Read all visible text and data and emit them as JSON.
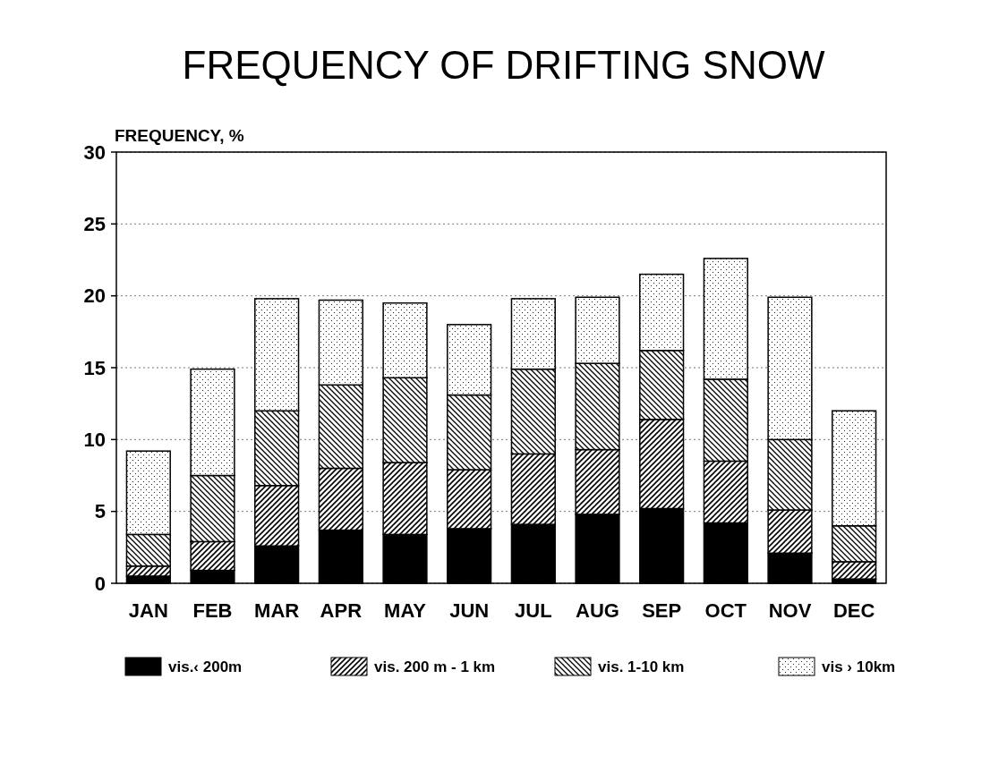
{
  "chart_data": {
    "type": "bar",
    "stacked": true,
    "title": "FREQUENCY OF DRIFTING SNOW",
    "ylabel": "FREQUENCY, %",
    "categories": [
      "JAN",
      "FEB",
      "MAR",
      "APR",
      "MAY",
      "JUN",
      "JUL",
      "AUG",
      "SEP",
      "OCT",
      "NOV",
      "DEC"
    ],
    "series": [
      {
        "name": "vis.‹ 200m",
        "color": "#000000",
        "values": [
          0.5,
          0.9,
          2.6,
          3.7,
          3.4,
          3.8,
          4.1,
          4.8,
          5.2,
          4.2,
          2.1,
          0.3
        ]
      },
      {
        "name": "vis. 200 m - 1 km",
        "color": "#000000",
        "values": [
          0.7,
          2.0,
          4.2,
          4.3,
          5.0,
          4.1,
          4.9,
          4.5,
          6.2,
          4.3,
          3.0,
          1.2
        ]
      },
      {
        "name": "vis. 1-10 km",
        "color": "#000000",
        "values": [
          2.2,
          4.6,
          5.2,
          5.8,
          5.9,
          5.2,
          5.9,
          6.0,
          4.8,
          5.7,
          4.9,
          2.5
        ]
      },
      {
        "name": "vis › 10km",
        "color": "#000000",
        "values": [
          5.8,
          7.4,
          7.8,
          5.9,
          5.2,
          4.9,
          4.9,
          4.6,
          5.3,
          8.4,
          9.9,
          8.0
        ]
      }
    ],
    "ylim": [
      0,
      30
    ],
    "yticks": [
      0,
      5,
      10,
      15,
      20,
      25,
      30
    ],
    "grid": "y",
    "legend": "bottom"
  }
}
